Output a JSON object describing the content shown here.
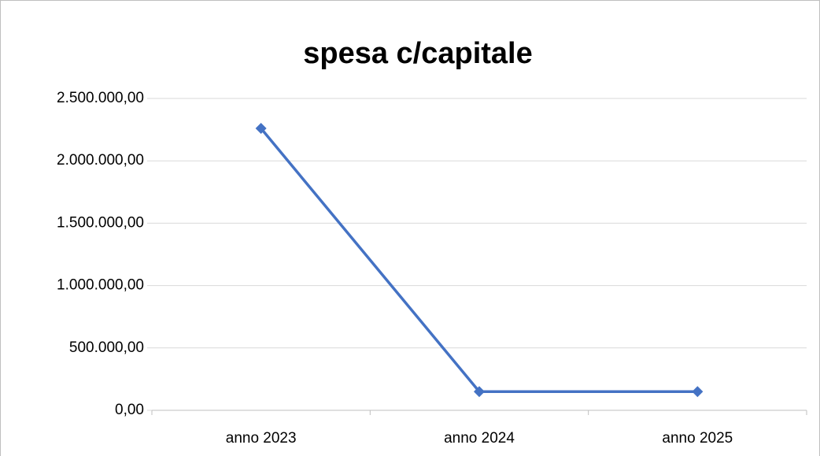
{
  "chart_data": {
    "type": "line",
    "title": "spesa c/capitale",
    "categories": [
      "anno 2023",
      "anno 2024",
      "anno 2025"
    ],
    "series": [
      {
        "name": "spesa c/capitale",
        "color": "#4472c4",
        "values": [
          2260000,
          150000,
          150000
        ]
      }
    ],
    "ylim": [
      0,
      2500000
    ],
    "yticks": [
      {
        "value": 0,
        "label": "0,00"
      },
      {
        "value": 500000,
        "label": "500.000,00"
      },
      {
        "value": 1000000,
        "label": "1.000.000,00"
      },
      {
        "value": 1500000,
        "label": "1.500.000,00"
      },
      {
        "value": 2000000,
        "label": "2.000.000,00"
      },
      {
        "value": 2500000,
        "label": "2.500.000,00"
      }
    ],
    "grid": true,
    "legend": false
  }
}
